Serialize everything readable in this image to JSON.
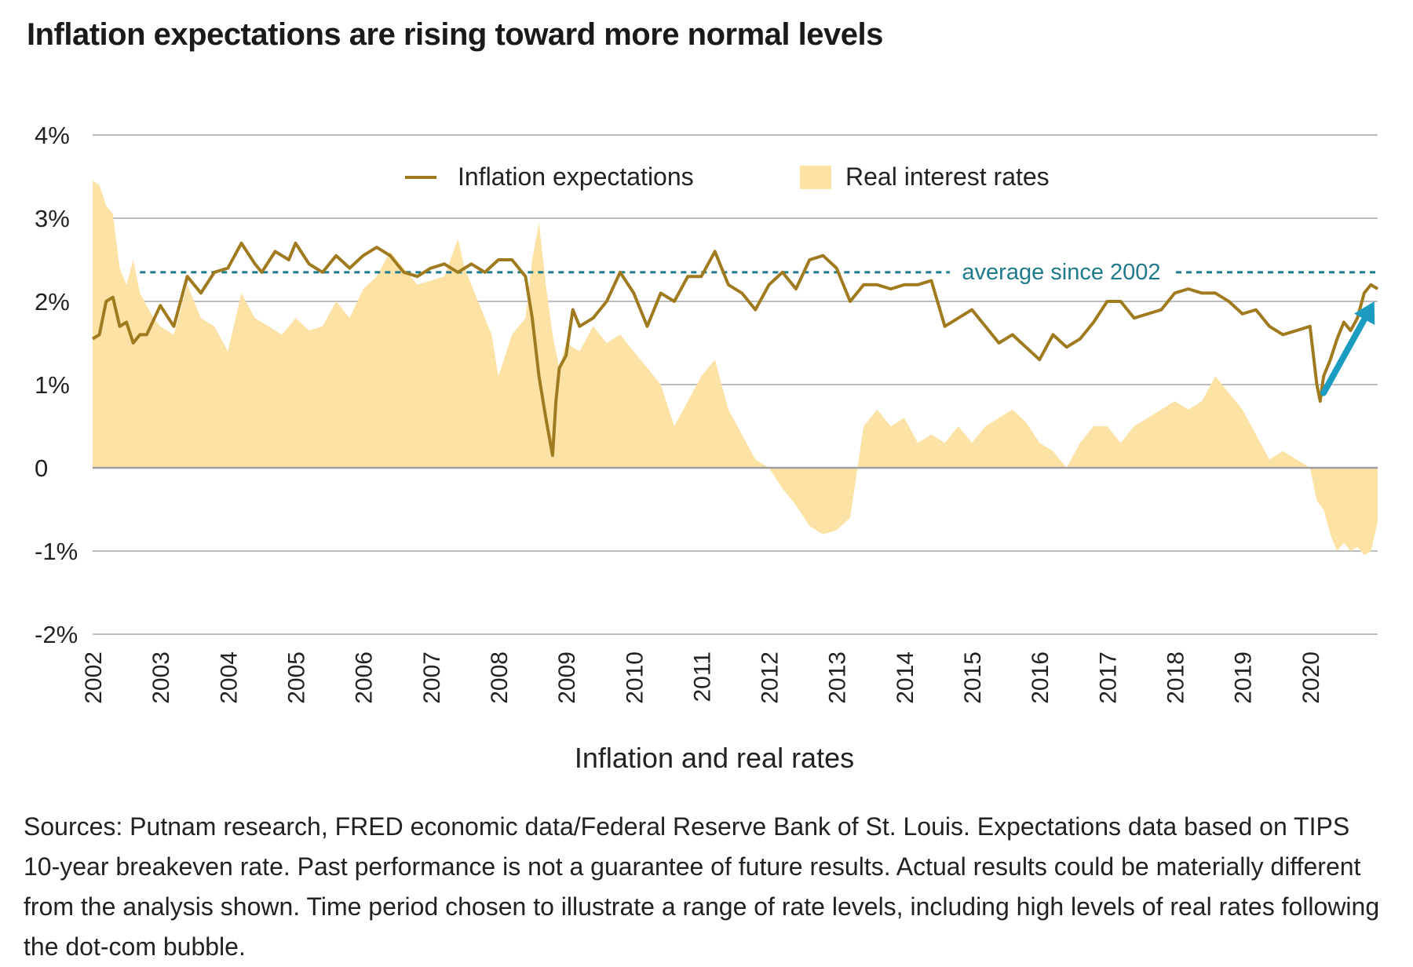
{
  "title": "Inflation expectations are rising toward more normal levels",
  "source_note": "Sources: Putnam research, FRED economic data/Federal Reserve Bank of St. Louis. Expectations data based on TIPS 10-year breakeven rate. Past performance is not a guarantee of future results. Actual results could be materially different from the analysis shown. Time period chosen to illustrate a range of rate levels, including high levels of real rates following the dot-com bubble.",
  "colors": {
    "inflation_line": "#a07a1e",
    "real_rates_fill": "#fde2a6",
    "average_line": "#1f7a8c",
    "arrow": "#1b9cc0",
    "grid": "#bdbdbd"
  },
  "chart_data": {
    "type": "line",
    "title": "Inflation expectations are rising toward more normal levels",
    "xlabel": "Inflation and real rates",
    "ylabel": "",
    "xlim": [
      2002.0,
      2021.0
    ],
    "ylim": [
      -2,
      4
    ],
    "grid": true,
    "legend_position": "top-center",
    "x_tick_labels": [
      "2002",
      "2003",
      "2004",
      "2005",
      "2006",
      "2007",
      "2008",
      "2009",
      "2010",
      "2011",
      "2012",
      "2013",
      "2014",
      "2015",
      "2016",
      "2017",
      "2018",
      "2019",
      "2020"
    ],
    "y_ticks": [
      4,
      3,
      2,
      1,
      0,
      -1,
      -2
    ],
    "y_tick_labels": [
      "4%",
      "3%",
      "2%",
      "1%",
      "0",
      "-1%",
      "-2%"
    ],
    "legend": [
      "Inflation expectations",
      "Real interest rates"
    ],
    "series": [
      {
        "name": "Inflation expectations",
        "kind": "line",
        "x": [
          2002.0,
          2002.1,
          2002.2,
          2002.3,
          2002.4,
          2002.5,
          2002.6,
          2002.7,
          2002.8,
          2003.0,
          2003.2,
          2003.4,
          2003.6,
          2003.8,
          2004.0,
          2004.2,
          2004.4,
          2004.5,
          2004.7,
          2004.9,
          2005.0,
          2005.2,
          2005.4,
          2005.6,
          2005.8,
          2006.0,
          2006.2,
          2006.4,
          2006.6,
          2006.8,
          2007.0,
          2007.2,
          2007.4,
          2007.6,
          2007.8,
          2008.0,
          2008.2,
          2008.4,
          2008.5,
          2008.6,
          2008.7,
          2008.8,
          2008.85,
          2008.9,
          2009.0,
          2009.1,
          2009.2,
          2009.4,
          2009.6,
          2009.8,
          2010.0,
          2010.2,
          2010.4,
          2010.6,
          2010.8,
          2011.0,
          2011.2,
          2011.3,
          2011.4,
          2011.6,
          2011.8,
          2012.0,
          2012.2,
          2012.4,
          2012.6,
          2012.8,
          2013.0,
          2013.2,
          2013.4,
          2013.6,
          2013.8,
          2014.0,
          2014.2,
          2014.4,
          2014.6,
          2014.8,
          2015.0,
          2015.2,
          2015.4,
          2015.6,
          2015.8,
          2016.0,
          2016.2,
          2016.4,
          2016.6,
          2016.8,
          2017.0,
          2017.2,
          2017.4,
          2017.6,
          2017.8,
          2018.0,
          2018.2,
          2018.4,
          2018.6,
          2018.8,
          2019.0,
          2019.2,
          2019.4,
          2019.6,
          2019.8,
          2020.0,
          2020.1,
          2020.15,
          2020.2,
          2020.3,
          2020.4,
          2020.5,
          2020.6,
          2020.7,
          2020.8,
          2020.9,
          2021.0
        ],
        "y": [
          1.55,
          1.6,
          2.0,
          2.05,
          1.7,
          1.75,
          1.5,
          1.6,
          1.6,
          1.95,
          1.7,
          2.3,
          2.1,
          2.35,
          2.4,
          2.7,
          2.45,
          2.35,
          2.6,
          2.5,
          2.7,
          2.45,
          2.35,
          2.55,
          2.4,
          2.55,
          2.65,
          2.55,
          2.35,
          2.3,
          2.4,
          2.45,
          2.35,
          2.45,
          2.35,
          2.5,
          2.5,
          2.3,
          1.8,
          1.1,
          0.6,
          0.15,
          0.8,
          1.2,
          1.35,
          1.9,
          1.7,
          1.8,
          2.0,
          2.35,
          2.1,
          1.7,
          2.1,
          2.0,
          2.3,
          2.3,
          2.6,
          2.4,
          2.2,
          2.1,
          1.9,
          2.2,
          2.35,
          2.15,
          2.5,
          2.55,
          2.4,
          2.0,
          2.2,
          2.2,
          2.15,
          2.2,
          2.2,
          2.25,
          1.7,
          1.8,
          1.9,
          1.7,
          1.5,
          1.6,
          1.45,
          1.3,
          1.6,
          1.45,
          1.55,
          1.75,
          2.0,
          2.0,
          1.8,
          1.85,
          1.9,
          2.1,
          2.15,
          2.1,
          2.1,
          2.0,
          1.85,
          1.9,
          1.7,
          1.6,
          1.65,
          1.7,
          1.0,
          0.8,
          1.1,
          1.3,
          1.55,
          1.75,
          1.65,
          1.8,
          2.1,
          2.2,
          2.15
        ]
      },
      {
        "name": "Real interest rates",
        "kind": "area",
        "x": [
          2002.0,
          2002.1,
          2002.2,
          2002.3,
          2002.4,
          2002.5,
          2002.6,
          2002.7,
          2002.9,
          2003.0,
          2003.2,
          2003.4,
          2003.6,
          2003.8,
          2004.0,
          2004.2,
          2004.4,
          2004.6,
          2004.8,
          2005.0,
          2005.2,
          2005.4,
          2005.6,
          2005.8,
          2006.0,
          2006.2,
          2006.4,
          2006.6,
          2006.8,
          2007.0,
          2007.2,
          2007.4,
          2007.5,
          2007.7,
          2007.9,
          2008.0,
          2008.2,
          2008.4,
          2008.5,
          2008.6,
          2008.7,
          2008.8,
          2008.9,
          2009.0,
          2009.2,
          2009.4,
          2009.6,
          2009.8,
          2010.0,
          2010.2,
          2010.4,
          2010.6,
          2010.8,
          2011.0,
          2011.2,
          2011.4,
          2011.6,
          2011.8,
          2012.0,
          2012.2,
          2012.4,
          2012.6,
          2012.8,
          2013.0,
          2013.2,
          2013.4,
          2013.6,
          2013.8,
          2014.0,
          2014.2,
          2014.4,
          2014.6,
          2014.8,
          2015.0,
          2015.2,
          2015.4,
          2015.6,
          2015.8,
          2016.0,
          2016.2,
          2016.4,
          2016.6,
          2016.8,
          2017.0,
          2017.2,
          2017.4,
          2017.6,
          2017.8,
          2018.0,
          2018.2,
          2018.4,
          2018.6,
          2018.8,
          2019.0,
          2019.2,
          2019.4,
          2019.6,
          2019.8,
          2020.0,
          2020.1,
          2020.2,
          2020.3,
          2020.4,
          2020.5,
          2020.6,
          2020.7,
          2020.8,
          2020.9,
          2021.0
        ],
        "y": [
          3.45,
          3.4,
          3.15,
          3.05,
          2.4,
          2.2,
          2.5,
          2.1,
          1.8,
          1.7,
          1.6,
          2.2,
          1.8,
          1.7,
          1.4,
          2.1,
          1.8,
          1.7,
          1.6,
          1.8,
          1.65,
          1.7,
          2.0,
          1.8,
          2.15,
          2.3,
          2.6,
          2.4,
          2.2,
          2.25,
          2.3,
          2.75,
          2.4,
          2.0,
          1.6,
          1.1,
          1.6,
          1.8,
          2.5,
          2.95,
          2.2,
          1.6,
          1.2,
          1.5,
          1.4,
          1.7,
          1.5,
          1.6,
          1.4,
          1.2,
          1.0,
          0.5,
          0.8,
          1.1,
          1.3,
          0.7,
          0.4,
          0.1,
          0.0,
          -0.25,
          -0.45,
          -0.7,
          -0.8,
          -0.75,
          -0.6,
          0.5,
          0.7,
          0.5,
          0.6,
          0.3,
          0.4,
          0.3,
          0.5,
          0.3,
          0.5,
          0.6,
          0.7,
          0.55,
          0.3,
          0.2,
          0.0,
          0.3,
          0.5,
          0.5,
          0.3,
          0.5,
          0.6,
          0.7,
          0.8,
          0.7,
          0.8,
          1.1,
          0.9,
          0.7,
          0.4,
          0.1,
          0.2,
          0.1,
          0.0,
          -0.4,
          -0.5,
          -0.8,
          -1.0,
          -0.9,
          -1.0,
          -0.95,
          -1.05,
          -1.0,
          -0.65
        ]
      }
    ],
    "reference_line": {
      "label": "average since 2002",
      "y": 2.35
    },
    "annotation": {
      "kind": "arrow",
      "from": [
        2020.2,
        0.9
      ],
      "to": [
        2020.95,
        2.0
      ]
    }
  }
}
